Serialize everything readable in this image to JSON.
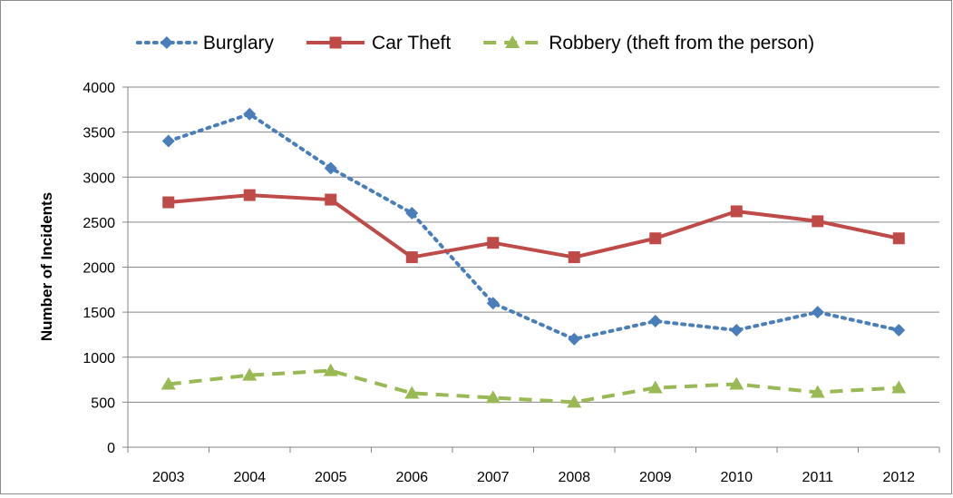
{
  "chart_data": {
    "type": "line",
    "title": "",
    "xlabel": "",
    "ylabel": "Number of Incidents",
    "categories": [
      "2003",
      "2004",
      "2005",
      "2006",
      "2007",
      "2008",
      "2009",
      "2010",
      "2011",
      "2012"
    ],
    "ylim": [
      0,
      4000
    ],
    "yticks": [
      0,
      500,
      1000,
      1500,
      2000,
      2500,
      3000,
      3500,
      4000
    ],
    "grid": true,
    "legend_position": "top",
    "series": [
      {
        "name": "Burglary",
        "color": "#4a7ebb",
        "line_style": "dotted",
        "marker": "diamond",
        "values": [
          3400,
          3700,
          3100,
          2600,
          1600,
          1200,
          1400,
          1300,
          1500,
          1300
        ]
      },
      {
        "name": "Car Theft",
        "color": "#be4b48",
        "line_style": "solid",
        "marker": "square",
        "values": [
          2720,
          2800,
          2750,
          2110,
          2270,
          2110,
          2320,
          2620,
          2510,
          2320
        ]
      },
      {
        "name": "Robbery (theft from the person)",
        "color": "#98b954",
        "line_style": "dashed",
        "marker": "triangle",
        "values": [
          700,
          800,
          850,
          600,
          550,
          500,
          660,
          700,
          610,
          660
        ]
      }
    ]
  }
}
